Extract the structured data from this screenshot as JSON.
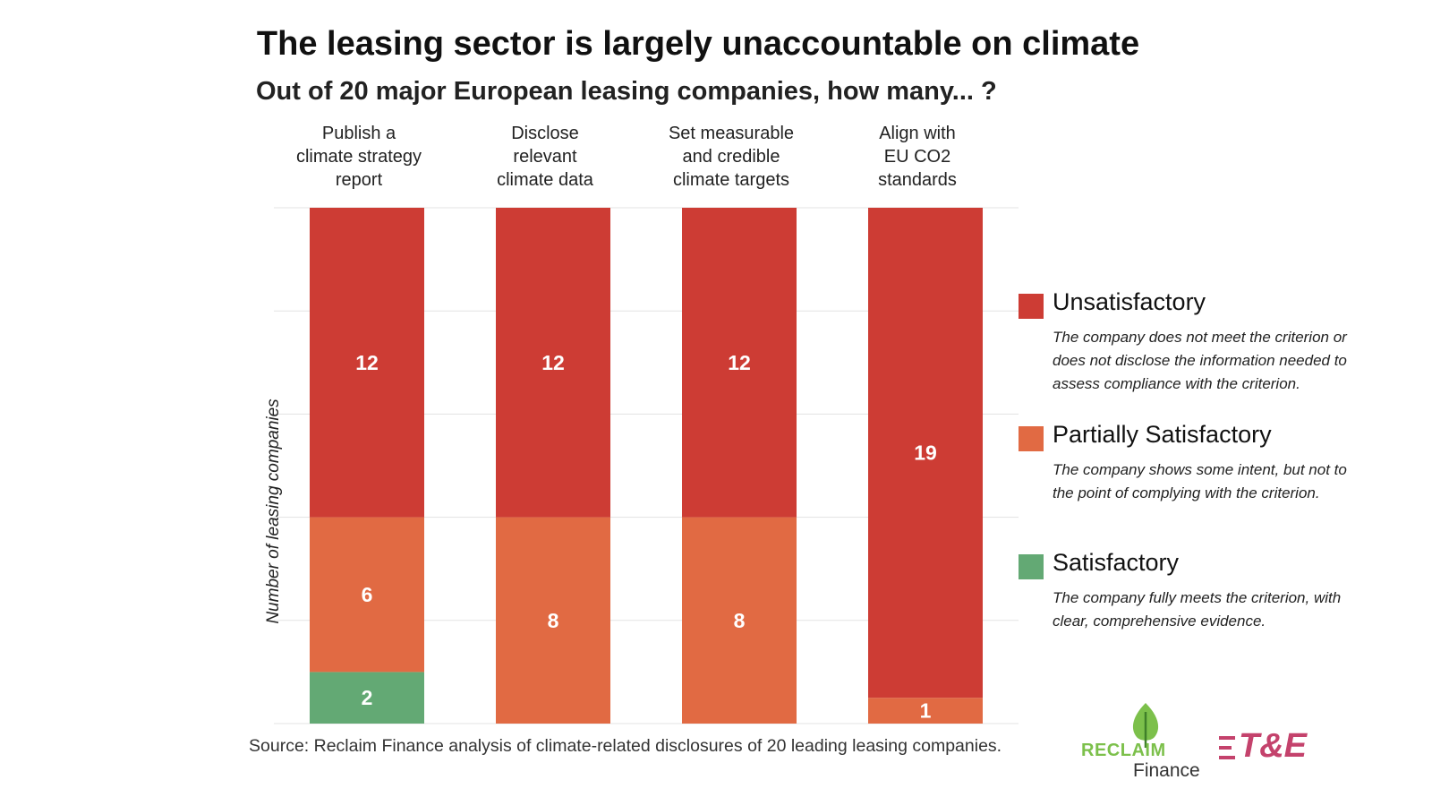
{
  "title": "The leasing sector is largely unaccountable on climate",
  "subtitle": "Out of 20 major European leasing companies, how many... ?",
  "chart_data": {
    "type": "bar",
    "stacked": true,
    "categories": [
      [
        "Publish a",
        "climate strategy",
        "report"
      ],
      [
        "Disclose",
        "relevant",
        "climate data"
      ],
      [
        "Set measurable",
        "and credible",
        "climate targets"
      ],
      [
        "Align with",
        "EU CO2",
        "standards"
      ]
    ],
    "series": [
      {
        "name": "Satisfactory",
        "values": [
          2,
          0,
          0,
          0
        ],
        "color": "#63a974"
      },
      {
        "name": "Partially Satisfactory",
        "values": [
          6,
          8,
          8,
          1
        ],
        "color": "#e16a43"
      },
      {
        "name": "Unsatisfactory",
        "values": [
          12,
          12,
          12,
          19
        ],
        "color": "#cd3c34"
      }
    ],
    "ylabel": "Number of leasing companies",
    "ylim": [
      0,
      20
    ],
    "y_gridlines": [
      0,
      4,
      8,
      12,
      16,
      20
    ],
    "show_y_ticks": false
  },
  "legend": [
    {
      "name": "Unsatisfactory",
      "description": "The company does not meet the criterion or does not disclose the information needed to assess compliance with the criterion.",
      "color": "#cd3c34"
    },
    {
      "name": "Partially Satisfactory",
      "description": "The company shows some intent, but not to the point of complying with the criterion.",
      "color": "#e16a43"
    },
    {
      "name": "Satisfactory",
      "description": "The company fully meets the criterion, with clear, comprehensive evidence.",
      "color": "#63a974"
    }
  ],
  "source": "Source: Reclaim Finance analysis of climate-related disclosures of 20 leading leasing companies.",
  "logos": {
    "reclaim_word": "RECLAIM",
    "finance_word": "Finance",
    "te_word": "T&E",
    "reclaim_color": "#7cc04b",
    "te_color": "#c4426c"
  }
}
